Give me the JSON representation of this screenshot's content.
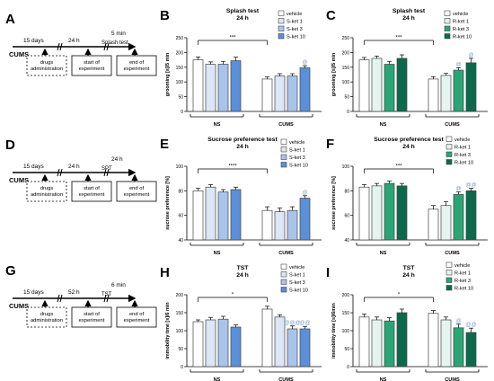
{
  "colors": {
    "vehicle": "#ffffff",
    "s1": "#dbe6f6",
    "s3": "#a9c4ea",
    "s10": "#5b8fd9",
    "r1": "#e3f5ee",
    "r3": "#2aa577",
    "r10": "#0b6a4c",
    "edge": "#444444"
  },
  "timelines": [
    {
      "label": "A",
      "t1": "15 days",
      "t2": "24 h",
      "t3": "5 min",
      "test": "Splash test",
      "stress": "CUMS",
      "box1": "drugs administration",
      "box2": "start of experiment",
      "box3": "end of experiment"
    },
    {
      "label": "D",
      "t1": "15 days",
      "t2": "24 h",
      "t3": "24 h",
      "test": "SPT",
      "stress": "CUMS",
      "box1": "drugs administration",
      "box2": "start of experiment",
      "box3": "end of experiment"
    },
    {
      "label": "G",
      "t1": "15 days",
      "t2": "52 h",
      "t3": "6 min",
      "test": "TST",
      "stress": "CUMS",
      "box1": "drugs administration",
      "box2": "start of experiment",
      "box3": "end of experiment"
    }
  ],
  "chart_data": [
    {
      "label": "B",
      "type": "bar",
      "title": "Splash test",
      "subtitle": "24 h",
      "ylabel": "grooming [s]/5 min",
      "ylim": [
        0,
        250
      ],
      "yticks": [
        0,
        50,
        100,
        150,
        200,
        250
      ],
      "groups": [
        "NS",
        "CUMS"
      ],
      "series": [
        {
          "name": "vehicle",
          "color_key": "vehicle",
          "values": [
            175,
            110
          ],
          "err": [
            10,
            7
          ]
        },
        {
          "name": "S-ket 1",
          "color_key": "s1",
          "values": [
            160,
            120
          ],
          "err": [
            8,
            8
          ]
        },
        {
          "name": "S-ket 3",
          "color_key": "s3",
          "values": [
            160,
            120
          ],
          "err": [
            10,
            8
          ]
        },
        {
          "name": "S-ket 10",
          "color_key": "s10",
          "values": [
            172,
            148
          ],
          "err": [
            12,
            7
          ]
        }
      ],
      "annotations": [
        {
          "text": "***",
          "over": "bracket"
        },
        {
          "text": "@",
          "group": 1,
          "series": 3
        }
      ],
      "legend": "top-right"
    },
    {
      "label": "C",
      "type": "bar",
      "title": "Splash test",
      "subtitle": "24 h",
      "ylabel": "grooming [s]/5 min",
      "ylim": [
        0,
        250
      ],
      "yticks": [
        0,
        50,
        100,
        150,
        200,
        250
      ],
      "groups": [
        "NS",
        "CUMS"
      ],
      "series": [
        {
          "name": "vehicle",
          "color_key": "vehicle",
          "values": [
            175,
            110
          ],
          "err": [
            8,
            8
          ]
        },
        {
          "name": "R-ket 1",
          "color_key": "r1",
          "values": [
            180,
            122
          ],
          "err": [
            8,
            7
          ]
        },
        {
          "name": "R-ket 3",
          "color_key": "r3",
          "values": [
            160,
            140
          ],
          "err": [
            10,
            8
          ]
        },
        {
          "name": "R-ket 10",
          "color_key": "r10",
          "values": [
            180,
            165
          ],
          "err": [
            12,
            15
          ]
        }
      ],
      "annotations": [
        {
          "text": "***",
          "over": "bracket"
        },
        {
          "text": "@",
          "group": 1,
          "series": 2
        },
        {
          "text": "@",
          "group": 1,
          "series": 3
        }
      ],
      "legend": "top-right"
    },
    {
      "label": "E",
      "type": "bar",
      "title": "Sucrose preference test",
      "subtitle": "24 h",
      "ylabel": "sucrose preference [%]",
      "ylim": [
        40,
        100
      ],
      "yticks": [
        40,
        60,
        80,
        100
      ],
      "groups": [
        "NS",
        "CUMS"
      ],
      "series": [
        {
          "name": "vehicle",
          "color_key": "vehicle",
          "values": [
            80,
            64
          ],
          "err": [
            2,
            3
          ]
        },
        {
          "name": "S-ket 1",
          "color_key": "s1",
          "values": [
            83,
            63
          ],
          "err": [
            2,
            3
          ]
        },
        {
          "name": "S-ket 3",
          "color_key": "s3",
          "values": [
            79,
            64
          ],
          "err": [
            2,
            3
          ]
        },
        {
          "name": "S-ket 10",
          "color_key": "s10",
          "values": [
            81,
            74
          ],
          "err": [
            2,
            2
          ]
        }
      ],
      "annotations": [
        {
          "text": "****",
          "over": "bracket"
        },
        {
          "text": "@",
          "group": 1,
          "series": 3
        }
      ],
      "legend": "top-right"
    },
    {
      "label": "F",
      "type": "bar",
      "title": "Sucrose preference test",
      "subtitle": "24 h",
      "ylabel": "sucrose preference [%]",
      "ylim": [
        40,
        100
      ],
      "yticks": [
        40,
        60,
        80,
        100
      ],
      "groups": [
        "NS",
        "CUMS"
      ],
      "series": [
        {
          "name": "vehicle",
          "color_key": "vehicle",
          "values": [
            83,
            65
          ],
          "err": [
            2,
            3
          ]
        },
        {
          "name": "R-ket 1",
          "color_key": "r1",
          "values": [
            84,
            68
          ],
          "err": [
            2,
            3
          ]
        },
        {
          "name": "R-ket 3",
          "color_key": "r3",
          "values": [
            86,
            77
          ],
          "err": [
            2,
            2
          ]
        },
        {
          "name": "R-ket 10",
          "color_key": "r10",
          "values": [
            84,
            80
          ],
          "err": [
            2,
            2
          ]
        }
      ],
      "annotations": [
        {
          "text": "***",
          "over": "bracket"
        },
        {
          "text": "@",
          "group": 1,
          "series": 2
        },
        {
          "text": "@@",
          "group": 1,
          "series": 3
        }
      ],
      "legend": "top-right"
    },
    {
      "label": "H",
      "type": "bar",
      "title": "TST",
      "subtitle": "24 h",
      "ylabel": "immobility time [s]/6 min",
      "ylim": [
        0,
        200
      ],
      "yticks": [
        0,
        50,
        100,
        150,
        200
      ],
      "groups": [
        "NS",
        "CUMS"
      ],
      "series": [
        {
          "name": "vehicle",
          "color_key": "vehicle",
          "values": [
            125,
            160
          ],
          "err": [
            5,
            8
          ]
        },
        {
          "name": "S-ket 1",
          "color_key": "s1",
          "values": [
            130,
            138
          ],
          "err": [
            7,
            6
          ]
        },
        {
          "name": "S-ket 3",
          "color_key": "s3",
          "values": [
            132,
            105
          ],
          "err": [
            8,
            8
          ]
        },
        {
          "name": "S-ket 10",
          "color_key": "s10",
          "values": [
            110,
            105
          ],
          "err": [
            6,
            7
          ]
        }
      ],
      "annotations": [
        {
          "text": "*",
          "over": "bracket"
        },
        {
          "text": "@@@",
          "group": 1,
          "series": 2
        },
        {
          "text": "@@",
          "group": 1,
          "series": 3
        }
      ],
      "legend": "top-right"
    },
    {
      "label": "I",
      "type": "bar",
      "title": "TST",
      "subtitle": "24 h",
      "ylabel": "immobility time [s]/6min",
      "ylim": [
        0,
        200
      ],
      "yticks": [
        0,
        50,
        100,
        150,
        200
      ],
      "groups": [
        "NS",
        "CUMS"
      ],
      "series": [
        {
          "name": "vehicle",
          "color_key": "vehicle",
          "values": [
            138,
            148
          ],
          "err": [
            8,
            8
          ]
        },
        {
          "name": "R-ket 1",
          "color_key": "r1",
          "values": [
            130,
            130
          ],
          "err": [
            8,
            8
          ]
        },
        {
          "name": "R-ket 3",
          "color_key": "r3",
          "values": [
            127,
            108
          ],
          "err": [
            9,
            10
          ]
        },
        {
          "name": "R-ket 10",
          "color_key": "r10",
          "values": [
            150,
            95
          ],
          "err": [
            10,
            12
          ]
        }
      ],
      "annotations": [
        {
          "text": "*",
          "over": "bracket"
        },
        {
          "text": "@",
          "group": 1,
          "series": 2
        },
        {
          "text": "@@",
          "group": 1,
          "series": 3
        }
      ],
      "legend": "top-right"
    }
  ]
}
